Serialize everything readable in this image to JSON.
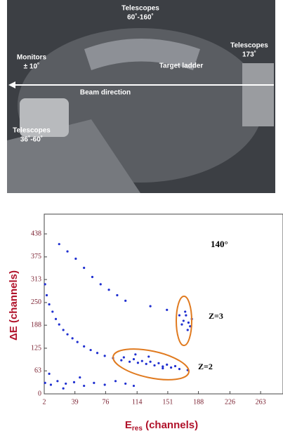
{
  "photo": {
    "labels": [
      {
        "lines": [
          "Telescopes",
          "60˚-160˚"
        ]
      },
      {
        "lines": [
          "Telescopes",
          "173˚"
        ]
      },
      {
        "lines": [
          "Monitors",
          "± 10˚"
        ]
      },
      {
        "lines": [
          "Target ladder"
        ]
      },
      {
        "lines": [
          "Beam direction"
        ]
      },
      {
        "lines": [
          "Telescopes",
          "36˚-60˚"
        ]
      }
    ]
  },
  "chart_data": {
    "type": "scatter",
    "ylabel": "ΔE (channels)",
    "xlabel": {
      "main": "E",
      "sub": "res",
      "rest": " (channels)"
    },
    "annotations": [
      "140°",
      "Z=3",
      "Z=2"
    ],
    "xlim": [
      2,
      290
    ],
    "ylim": [
      0,
      492
    ],
    "xticks": [
      2,
      39,
      76,
      114,
      151,
      188,
      226,
      263
    ],
    "yticks": [
      0,
      63,
      125,
      188,
      250,
      313,
      375,
      438
    ],
    "series": [
      {
        "color": "#1f2fd0",
        "x": [
          3,
          5,
          8,
          12,
          16,
          20,
          25,
          30,
          36,
          42,
          50,
          58,
          66,
          75,
          85,
          95,
          105,
          115,
          125,
          135,
          145,
          155,
          165,
          175,
          98,
          110,
          120,
          130,
          140,
          150,
          160,
          112,
          128,
          145,
          170,
          173,
          176,
          178,
          172,
          175,
          180,
          168,
          20,
          30,
          40,
          50,
          60,
          70,
          80,
          90,
          100,
          130,
          150,
          165,
          3,
          10,
          18,
          28,
          38,
          50,
          62,
          75,
          88,
          100,
          110,
          8,
          25,
          45
        ],
        "values": [
          300,
          270,
          245,
          225,
          205,
          190,
          175,
          163,
          152,
          142,
          130,
          120,
          112,
          104,
          98,
          92,
          88,
          85,
          82,
          78,
          75,
          72,
          68,
          65,
          100,
          95,
          90,
          88,
          84,
          80,
          76,
          108,
          102,
          70,
          200,
          215,
          195,
          185,
          225,
          175,
          205,
          190,
          410,
          390,
          370,
          345,
          320,
          300,
          285,
          270,
          255,
          240,
          230,
          215,
          30,
          25,
          35,
          28,
          32,
          22,
          30,
          25,
          35,
          28,
          22,
          55,
          15,
          45
        ]
      }
    ]
  }
}
